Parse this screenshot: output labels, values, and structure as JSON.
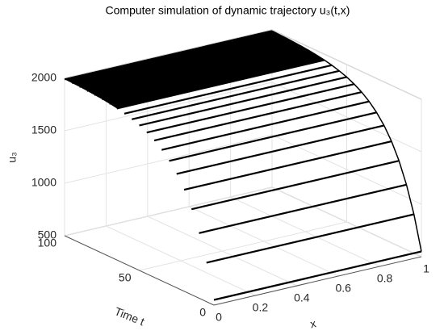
{
  "chart_data": {
    "type": "surface",
    "title": "Computer simulation of dynamic trajectory u₃(t,x)",
    "xlabel": "x",
    "ylabel": "Time t",
    "zlabel": "u₃",
    "xlim": [
      0,
      1
    ],
    "xticks": [
      0,
      0.2,
      0.4,
      0.6,
      0.8,
      1
    ],
    "ylim": [
      0,
      100
    ],
    "yticks": [
      0,
      50,
      100
    ],
    "zlim": [
      500,
      2000
    ],
    "zticks": [
      500,
      1000,
      1500,
      2000
    ],
    "grid": true,
    "color": "#000000",
    "t": [
      0,
      5,
      10,
      15,
      20,
      25,
      30,
      35,
      40,
      45,
      50,
      55,
      60,
      65,
      70,
      75,
      80,
      85,
      90,
      95,
      100
    ],
    "values": [
      550,
      871,
      1120,
      1315,
      1467,
      1585,
      1676,
      1748,
      1804,
      1847,
      1881,
      1907,
      1928,
      1944,
      1956,
      1966,
      1973,
      1979,
      1984,
      1987,
      1990
    ]
  }
}
